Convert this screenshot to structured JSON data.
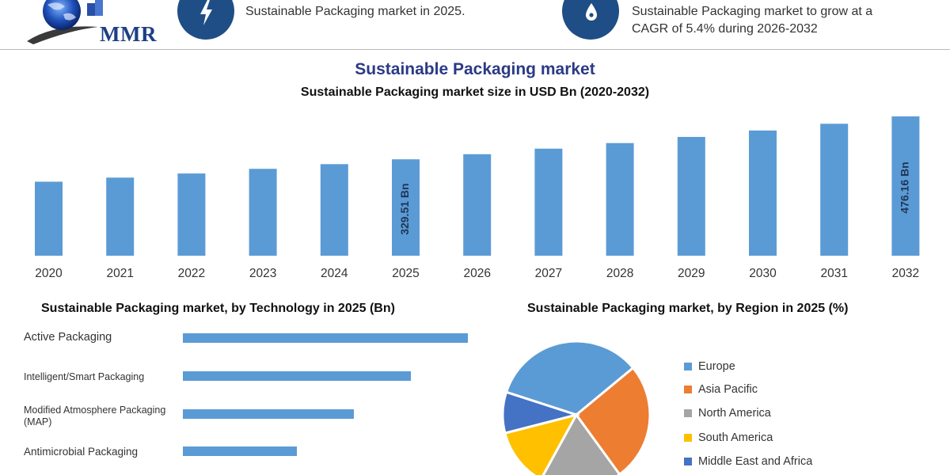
{
  "header": {
    "logo_text": "MMR",
    "kpi_1_text": "Sustainable Packaging market in 2025.",
    "kpi_2_line1": "Sustainable Packaging market to grow at a",
    "kpi_2_line2": "CAGR of 5.4% during 2026-2032",
    "kpi_1_icon": "lightning-icon",
    "kpi_2_icon": "drop-icon",
    "icon_color": "#1f4e86"
  },
  "main": {
    "title": "Sustainable Packaging market",
    "subtitle": "Sustainable Packaging market size in USD Bn (2020-2032)"
  },
  "technology": {
    "title": "Sustainable Packaging market, by Technology in 2025 (Bn)"
  },
  "region": {
    "title": "Sustainable Packaging market, by Region in 2025 (%)"
  },
  "chart_data": [
    {
      "type": "bar",
      "title": "Sustainable Packaging market size in USD Bn (2020-2032)",
      "categories": [
        "2020",
        "2021",
        "2022",
        "2023",
        "2024",
        "2025",
        "2026",
        "2027",
        "2028",
        "2029",
        "2030",
        "2031",
        "2032"
      ],
      "values": [
        253,
        267,
        281,
        297,
        313,
        329.51,
        347,
        366,
        385,
        406,
        428,
        451,
        476.16
      ],
      "data_labels": {
        "2025": "329.51 Bn",
        "2032": "476.16 Bn"
      },
      "ylim": [
        0,
        500
      ],
      "color": "#5b9bd5",
      "grid": false
    },
    {
      "type": "bar",
      "orientation": "horizontal",
      "title": "Sustainable Packaging market, by Technology in 2025 (Bn)",
      "categories": [
        "Active Packaging",
        "Intelligent/Smart Packaging",
        "Modified Atmosphere Packaging (MAP)",
        "Antimicrobial Packaging"
      ],
      "values": [
        100,
        80,
        60,
        40
      ],
      "color": "#5b9bd5",
      "grid": false
    },
    {
      "type": "pie",
      "title": "Sustainable Packaging market, by Region in 2025 (%)",
      "categories": [
        "Europe",
        "Asia Pacific",
        "North America",
        "South America",
        "Middle East and Africa"
      ],
      "values": [
        34,
        26,
        18,
        13,
        9
      ],
      "colors": [
        "#5b9bd5",
        "#ed7d31",
        "#a5a5a5",
        "#ffc000",
        "#4472c4"
      ],
      "legend_position": "right"
    }
  ]
}
